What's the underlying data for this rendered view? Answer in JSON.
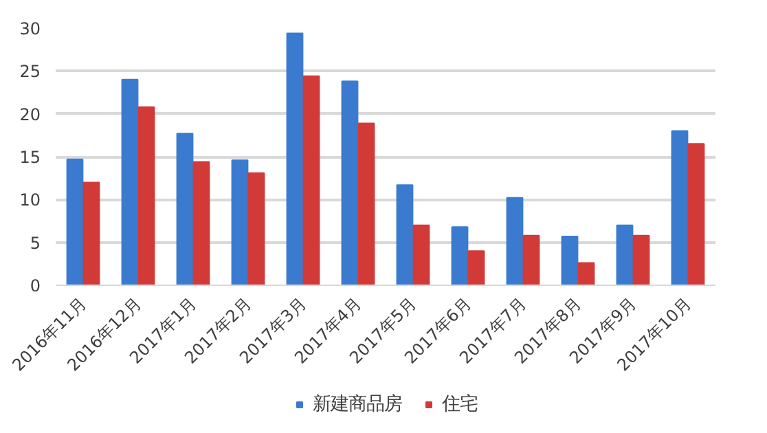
{
  "chart_data": {
    "type": "bar",
    "categories": [
      "2016年11月",
      "2016年12月",
      "2017年1月",
      "2017年2月",
      "2017年3月",
      "2017年4月",
      "2017年5月",
      "2017年6月",
      "2017年7月",
      "2017年8月",
      "2017年9月",
      "2017年10月"
    ],
    "series": [
      {
        "name": "新建商品房",
        "color": "#3a7bd0",
        "values": [
          14.7,
          24,
          17.7,
          14.6,
          29.4,
          23.8,
          11.7,
          6.8,
          10.2,
          5.7,
          7,
          18
        ]
      },
      {
        "name": "住宅",
        "color": "#d23a38",
        "values": [
          12,
          20.8,
          14.4,
          13.1,
          24.4,
          18.9,
          7,
          4,
          5.8,
          2.6,
          5.8,
          16.5
        ]
      }
    ],
    "ylim": [
      0,
      30
    ],
    "yticks": [
      0,
      5,
      10,
      15,
      20,
      25,
      30
    ],
    "grid": "y",
    "legend": "bottom"
  }
}
